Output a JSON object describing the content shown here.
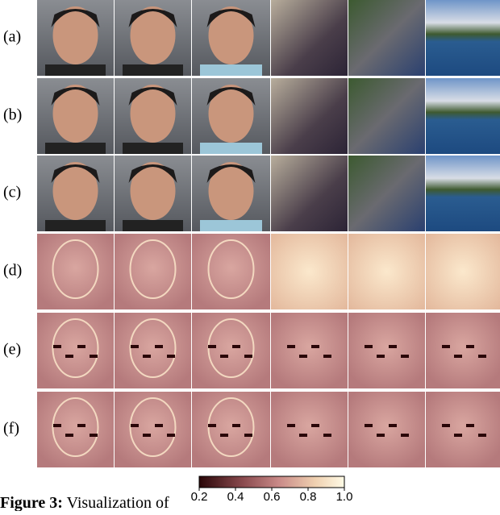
{
  "row_labels": [
    "(a)",
    "(b)",
    "(c)",
    "(d)",
    "(e)",
    "(f)"
  ],
  "colorbar": {
    "lim": [
      0.2,
      {
        "value": 1,
        "label": "1.0"
      }
    ],
    "ticks": [
      0.2,
      0.4,
      0.6,
      0.8,
      {
        "value": 1,
        "label": "1.0"
      }
    ]
  },
  "caption": {
    "label": "Figure 3:",
    "text": "Visualization of"
  }
}
